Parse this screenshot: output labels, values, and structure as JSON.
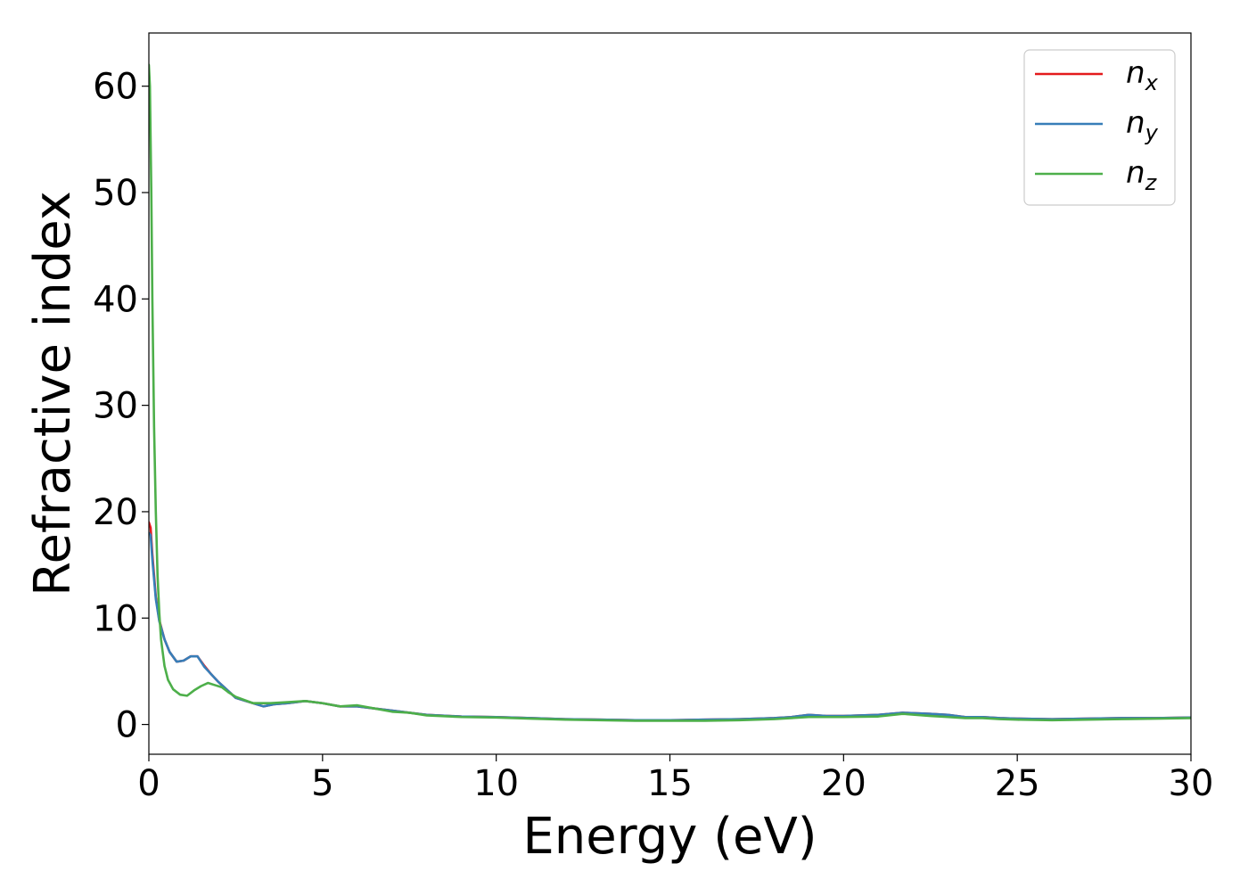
{
  "chart_data": {
    "type": "line",
    "xlabel": "Energy (eV)",
    "ylabel": "Refractive index",
    "xlim": [
      0,
      30
    ],
    "ylim": [
      -2.8,
      65
    ],
    "xticks": [
      0,
      5,
      10,
      15,
      20,
      25,
      30
    ],
    "yticks": [
      0,
      10,
      20,
      30,
      40,
      50,
      60
    ],
    "grid": false,
    "legend_position": "top-right",
    "series": [
      {
        "name": "n",
        "subscript": "x",
        "color": "#e41a1c",
        "x": [
          0,
          0.05,
          0.1,
          0.2,
          0.3,
          0.45,
          0.6,
          0.8,
          1.0,
          1.2,
          1.4,
          1.6,
          1.8,
          2.0,
          2.2,
          2.5,
          3.0,
          3.3,
          3.6,
          4.0,
          4.5,
          5.0,
          5.5,
          6.0,
          6.5,
          7.0,
          7.5,
          8.0,
          9.0,
          10.0,
          11.0,
          12.0,
          13.0,
          14.0,
          15.0,
          16.0,
          17.0,
          18.0,
          18.5,
          19.0,
          19.5,
          20.0,
          21.0,
          21.7,
          22.5,
          23.0,
          23.5,
          24.0,
          24.5,
          25.0,
          26.0,
          27.0,
          28.0,
          29.0,
          30.0
        ],
        "y": [
          19.0,
          18.5,
          16.0,
          12.0,
          9.8,
          8.0,
          6.8,
          5.9,
          6.0,
          6.4,
          6.4,
          5.5,
          4.7,
          4.0,
          3.4,
          2.5,
          2.0,
          1.7,
          1.9,
          2.0,
          2.2,
          2.0,
          1.7,
          1.7,
          1.5,
          1.3,
          1.1,
          0.9,
          0.75,
          0.7,
          0.6,
          0.5,
          0.45,
          0.4,
          0.4,
          0.45,
          0.5,
          0.6,
          0.7,
          0.9,
          0.8,
          0.8,
          0.9,
          1.1,
          1.0,
          0.9,
          0.7,
          0.7,
          0.6,
          0.55,
          0.5,
          0.55,
          0.6,
          0.6,
          0.65
        ]
      },
      {
        "name": "n",
        "subscript": "y",
        "color": "#377eb8",
        "x": [
          0,
          0.05,
          0.1,
          0.2,
          0.3,
          0.45,
          0.6,
          0.8,
          1.0,
          1.2,
          1.4,
          1.6,
          1.8,
          2.0,
          2.2,
          2.5,
          3.0,
          3.3,
          3.6,
          4.0,
          4.5,
          5.0,
          5.5,
          6.0,
          6.5,
          7.0,
          7.5,
          8.0,
          9.0,
          10.0,
          11.0,
          12.0,
          13.0,
          14.0,
          15.0,
          16.0,
          17.0,
          18.0,
          18.5,
          19.0,
          19.5,
          20.0,
          21.0,
          21.7,
          22.5,
          23.0,
          23.5,
          24.0,
          24.5,
          25.0,
          26.0,
          27.0,
          28.0,
          29.0,
          30.0
        ],
        "y": [
          18.0,
          17.8,
          15.5,
          11.8,
          9.7,
          8.0,
          6.8,
          5.9,
          6.0,
          6.4,
          6.4,
          5.4,
          4.7,
          4.0,
          3.4,
          2.5,
          2.0,
          1.7,
          1.9,
          2.0,
          2.2,
          2.0,
          1.7,
          1.7,
          1.5,
          1.3,
          1.1,
          0.9,
          0.75,
          0.7,
          0.6,
          0.5,
          0.45,
          0.4,
          0.4,
          0.45,
          0.5,
          0.6,
          0.7,
          0.9,
          0.8,
          0.8,
          0.9,
          1.1,
          1.0,
          0.9,
          0.7,
          0.7,
          0.6,
          0.55,
          0.5,
          0.55,
          0.6,
          0.6,
          0.65
        ]
      },
      {
        "name": "n",
        "subscript": "z",
        "color": "#4daf4a",
        "x": [
          0,
          0.03,
          0.07,
          0.1,
          0.15,
          0.2,
          0.25,
          0.3,
          0.35,
          0.45,
          0.55,
          0.7,
          0.9,
          1.1,
          1.3,
          1.5,
          1.7,
          1.9,
          2.1,
          2.3,
          2.5,
          3.0,
          3.5,
          4.0,
          4.5,
          5.0,
          5.5,
          6.0,
          6.5,
          7.0,
          7.5,
          8.0,
          9.0,
          10.0,
          11.0,
          12.0,
          13.0,
          14.0,
          15.0,
          16.0,
          17.0,
          18.0,
          18.5,
          19.0,
          20.0,
          21.0,
          21.7,
          22.5,
          23.0,
          23.5,
          24.0,
          24.5,
          25.0,
          26.0,
          27.0,
          28.0,
          29.0,
          30.0
        ],
        "y": [
          62.0,
          60.0,
          50.0,
          40.0,
          28.0,
          20.0,
          14.0,
          10.5,
          8.0,
          5.5,
          4.2,
          3.3,
          2.8,
          2.7,
          3.2,
          3.6,
          3.9,
          3.7,
          3.5,
          3.0,
          2.6,
          2.0,
          2.0,
          2.1,
          2.2,
          2.0,
          1.7,
          1.8,
          1.5,
          1.2,
          1.1,
          0.85,
          0.7,
          0.65,
          0.55,
          0.45,
          0.4,
          0.35,
          0.35,
          0.35,
          0.4,
          0.5,
          0.6,
          0.7,
          0.7,
          0.75,
          1.0,
          0.8,
          0.7,
          0.6,
          0.6,
          0.5,
          0.45,
          0.4,
          0.45,
          0.5,
          0.55,
          0.6
        ]
      }
    ]
  }
}
